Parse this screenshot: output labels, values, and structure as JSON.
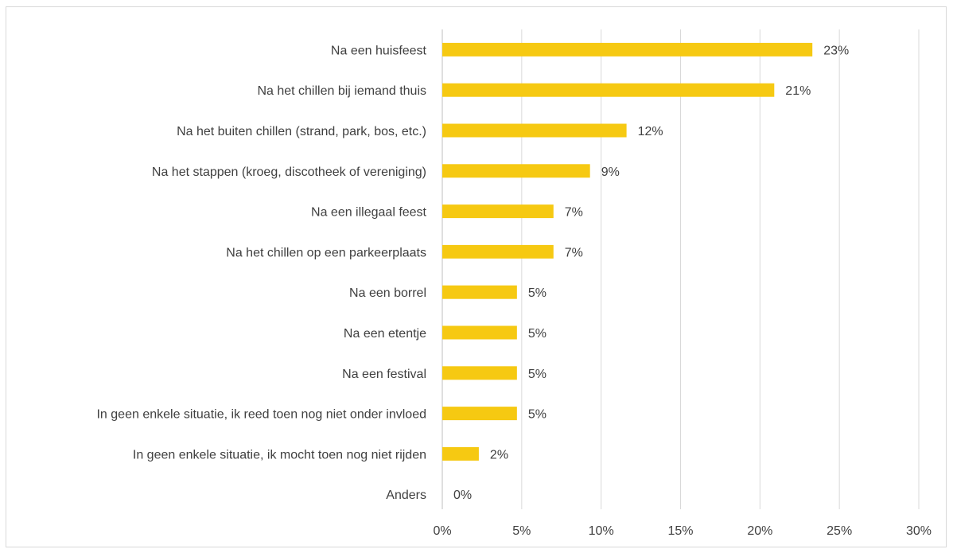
{
  "chart_data": {
    "type": "bar",
    "orientation": "horizontal",
    "title": "",
    "xlabel": "",
    "ylabel": "",
    "categories": [
      "Na een huisfeest",
      "Na het chillen bij iemand thuis",
      "Na het buiten chillen (strand, park, bos, etc.)",
      "Na het stappen (kroeg, discotheek of vereniging)",
      "Na een illegaal feest",
      "Na het chillen op een parkeerplaats",
      "Na een borrel",
      "Na een etentje",
      "Na een festival",
      "In geen enkele situatie, ik reed toen nog niet onder invloed",
      "In geen enkele situatie, ik mocht toen nog niet rijden",
      "Anders"
    ],
    "values": [
      23.3,
      20.9,
      11.6,
      9.3,
      7.0,
      7.0,
      4.7,
      4.7,
      4.7,
      4.7,
      2.3,
      0
    ],
    "data_labels": [
      "23%",
      "21%",
      "12%",
      "9%",
      "7%",
      "7%",
      "5%",
      "5%",
      "5%",
      "5%",
      "2%",
      "0%"
    ],
    "xlim": [
      0,
      30
    ],
    "x_ticks": [
      0,
      5,
      10,
      15,
      20,
      25,
      30
    ],
    "x_tick_labels": [
      "0%",
      "5%",
      "10%",
      "15%",
      "20%",
      "25%",
      "30%"
    ],
    "grid": "vertical",
    "legend": "none",
    "bar_color": "#F6C912",
    "grid_color": "#d9d9d9",
    "text_color": "#404040"
  }
}
